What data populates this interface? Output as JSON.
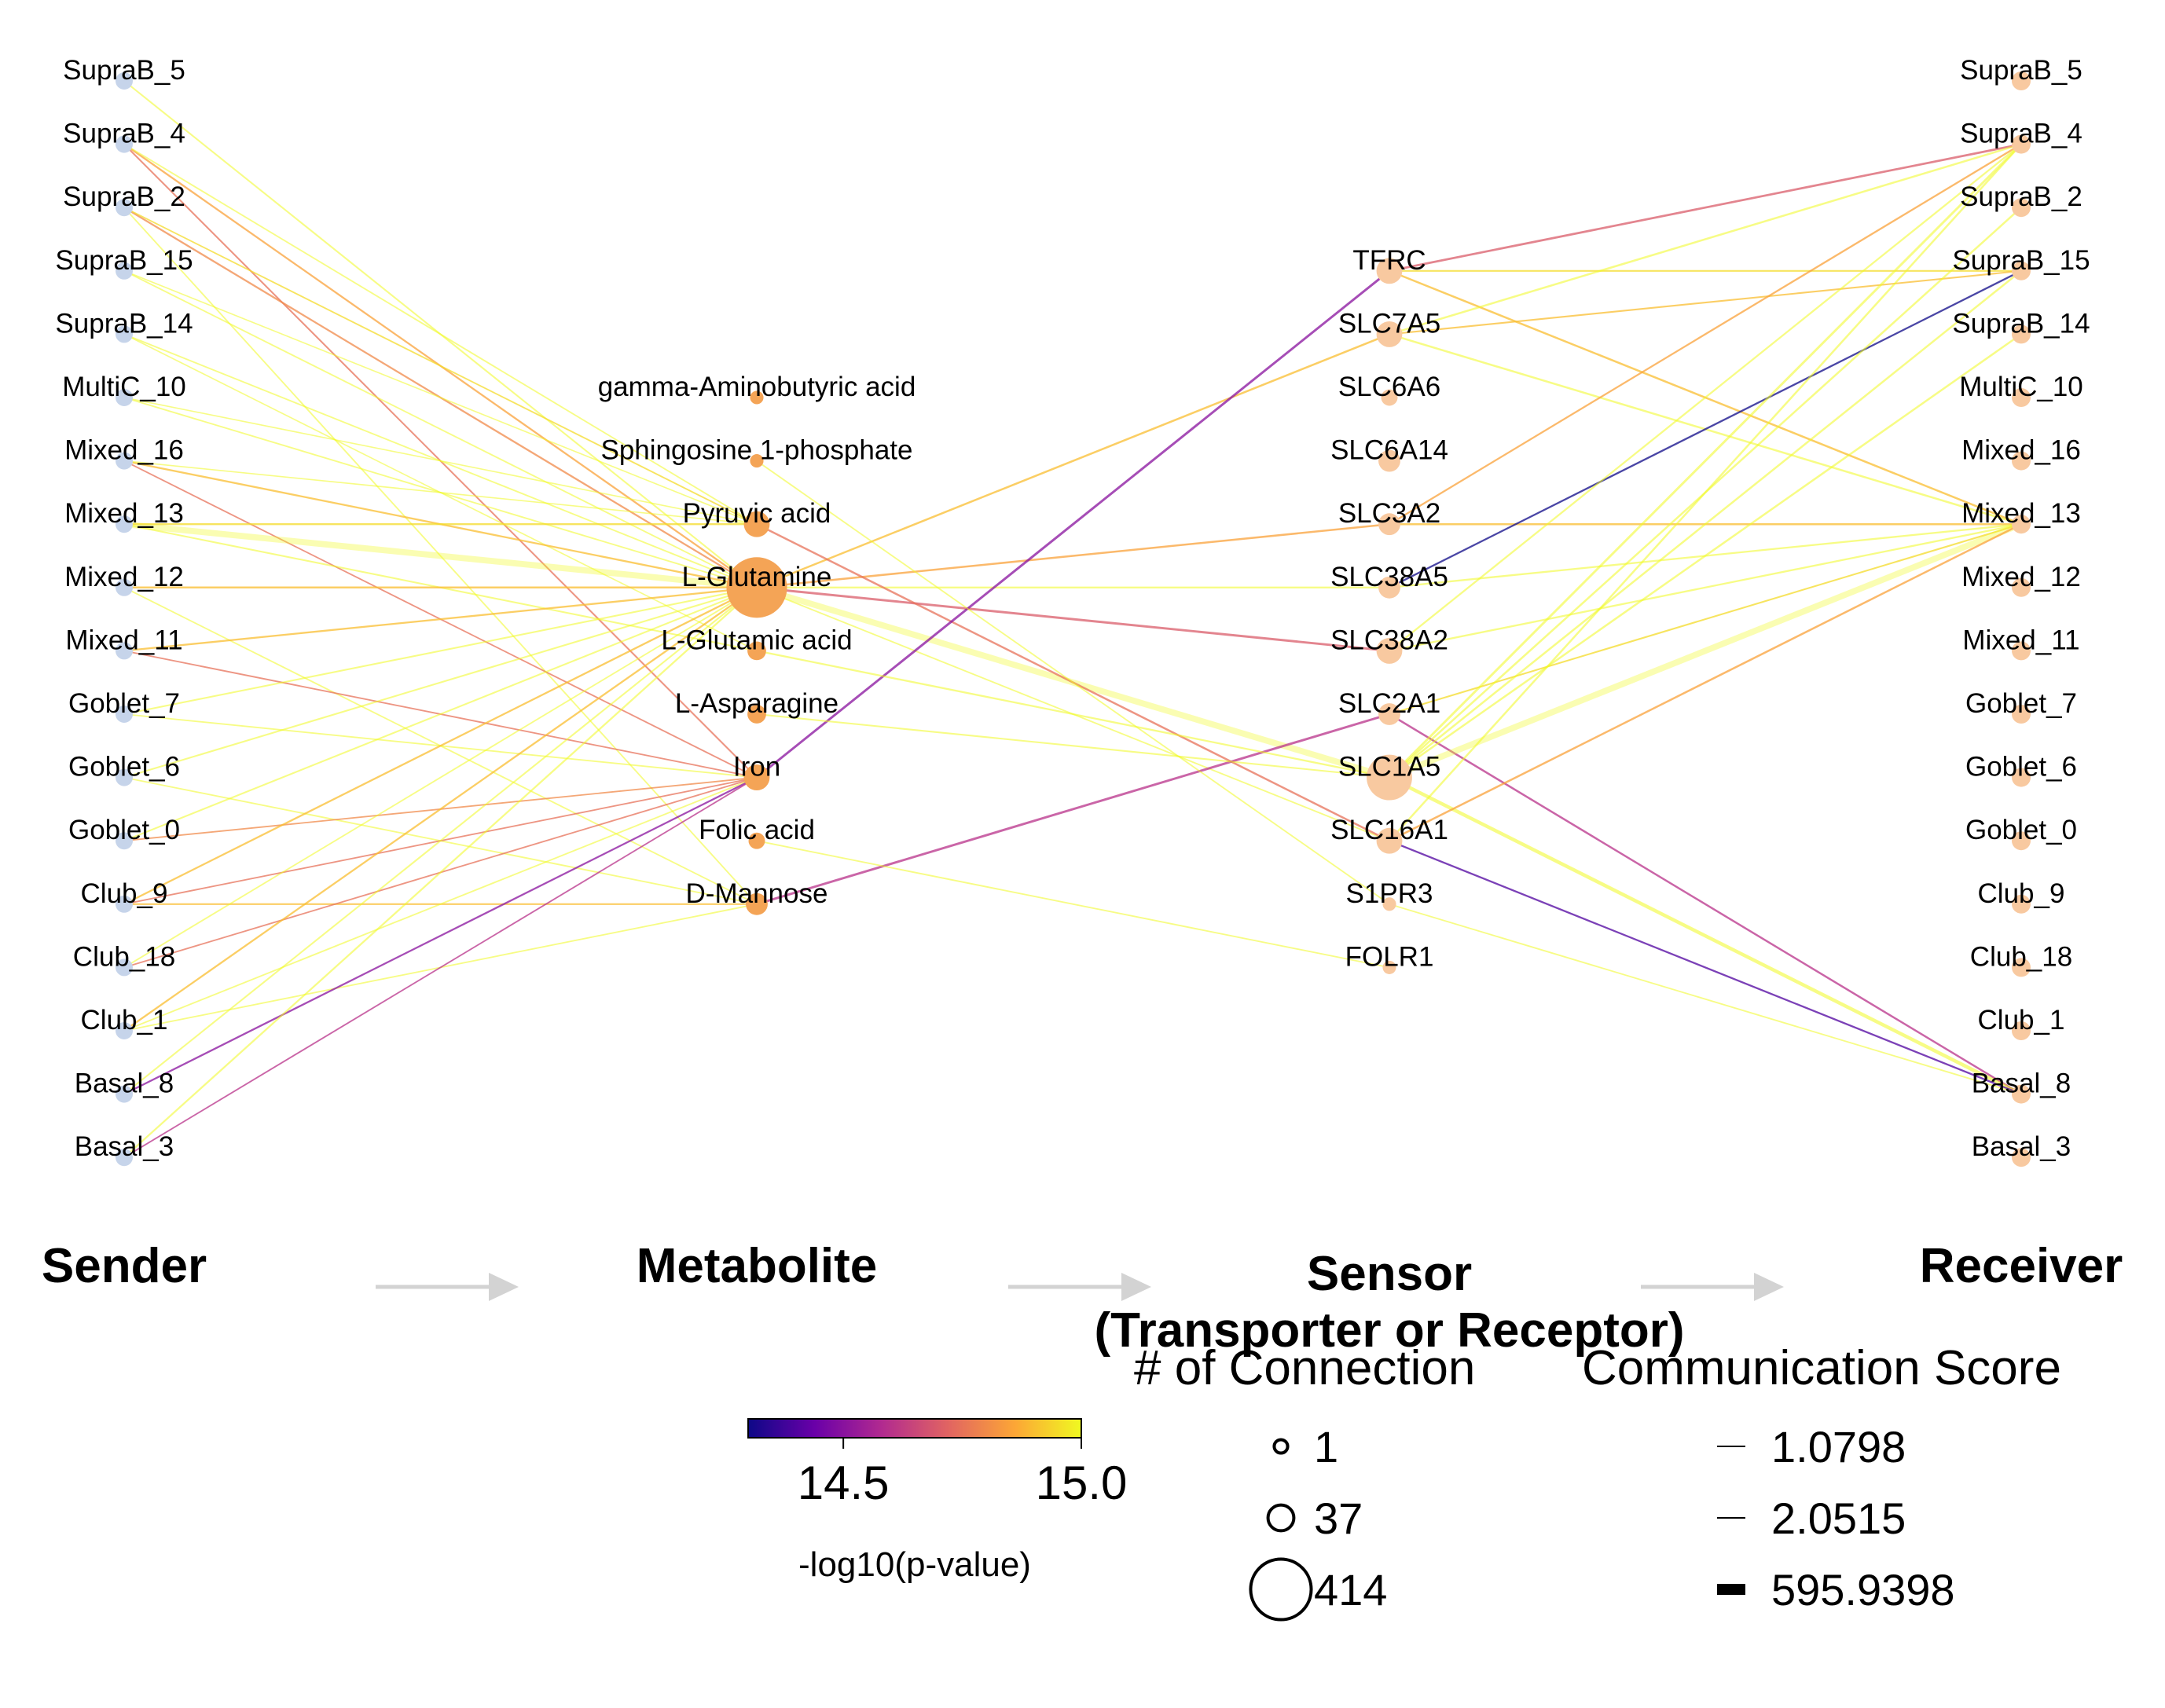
{
  "senders": [
    "SupraB_5",
    "SupraB_4",
    "SupraB_2",
    "SupraB_15",
    "SupraB_14",
    "MultiC_10",
    "Mixed_16",
    "Mixed_13",
    "Mixed_12",
    "Mixed_11",
    "Goblet_7",
    "Goblet_6",
    "Goblet_0",
    "Club_9",
    "Club_18",
    "Club_1",
    "Basal_8",
    "Basal_3"
  ],
  "metabolites": [
    {
      "name": "gamma-Aminobutyric acid",
      "connections": 1
    },
    {
      "name": "Sphingosine 1-phosphate",
      "connections": 1
    },
    {
      "name": "Pyruvic acid",
      "connections": 37
    },
    {
      "name": "L-Glutamine",
      "connections": 414
    },
    {
      "name": "L-Glutamic acid",
      "connections": 10
    },
    {
      "name": "L-Asparagine",
      "connections": 10
    },
    {
      "name": "Iron",
      "connections": 37
    },
    {
      "name": "Folic acid",
      "connections": 5
    },
    {
      "name": "D-Mannose",
      "connections": 20
    }
  ],
  "sensors": [
    {
      "name": "TFRC",
      "connections": 37
    },
    {
      "name": "SLC7A5",
      "connections": 37
    },
    {
      "name": "SLC6A6",
      "connections": 5
    },
    {
      "name": "SLC6A14",
      "connections": 20
    },
    {
      "name": "SLC3A2",
      "connections": 20
    },
    {
      "name": "SLC38A5",
      "connections": 20
    },
    {
      "name": "SLC38A2",
      "connections": 37
    },
    {
      "name": "SLC2A1",
      "connections": 20
    },
    {
      "name": "SLC1A5",
      "connections": 200
    },
    {
      "name": "SLC16A1",
      "connections": 37
    },
    {
      "name": "S1PR3",
      "connections": 1
    },
    {
      "name": "FOLR1",
      "connections": 1
    }
  ],
  "receivers": [
    "SupraB_5",
    "SupraB_4",
    "SupraB_2",
    "SupraB_15",
    "SupraB_14",
    "MultiC_10",
    "Mixed_16",
    "Mixed_13",
    "Mixed_12",
    "Mixed_11",
    "Goblet_7",
    "Goblet_6",
    "Goblet_0",
    "Club_9",
    "Club_18",
    "Club_1",
    "Basal_8",
    "Basal_3"
  ],
  "stage_labels": [
    "Sender",
    "Metabolite",
    "Sensor\n(Transporter or Receptor)",
    "Receiver"
  ],
  "colorbar": {
    "title": "-log10(p-value)",
    "min": 14.3,
    "max": 15.0,
    "ticks": [
      "14.5",
      "15.0"
    ],
    "tick_values": [
      14.5,
      15.0
    ],
    "colors": [
      "#0d0887",
      "#6a00a8",
      "#b12a90",
      "#e16462",
      "#fca636",
      "#f0f921"
    ]
  },
  "connection_legend": {
    "title": "# of Connection",
    "items": [
      {
        "label": "1",
        "value": 1
      },
      {
        "label": "37",
        "value": 37
      },
      {
        "label": "414",
        "value": 414
      }
    ]
  },
  "score_legend": {
    "title": "Communication Score",
    "items": [
      {
        "label": "1.0798",
        "value": 1.0798
      },
      {
        "label": "2.0515",
        "value": 2.0515
      },
      {
        "label": "595.9398",
        "value": 595.9398
      }
    ]
  },
  "colors": {
    "sender_node": "#c6d4ea",
    "metabolite_node": "#f4a456",
    "sensor_node": "#f8c9a0",
    "receiver_node": "#f8c9a0",
    "arrow": "#d3d3d3"
  },
  "edges": {
    "sender_metabolite": [
      [
        "SupraB_5",
        "L-Glutamine",
        15.0,
        0.4
      ],
      [
        "SupraB_4",
        "L-Glutamine",
        14.85,
        0.5
      ],
      [
        "SupraB_4",
        "Iron",
        14.75,
        0.4
      ],
      [
        "SupraB_4",
        "Pyruvic acid",
        15.0,
        0.3
      ],
      [
        "SupraB_2",
        "L-Glutamine",
        14.8,
        0.5
      ],
      [
        "SupraB_2",
        "Pyruvic acid",
        14.95,
        0.3
      ],
      [
        "SupraB_2",
        "D-Mannose",
        15.0,
        0.3
      ],
      [
        "SupraB_15",
        "L-Glutamine",
        15.0,
        0.3
      ],
      [
        "SupraB_15",
        "Pyruvic acid",
        15.0,
        0.2
      ],
      [
        "SupraB_14",
        "L-Glutamine",
        15.0,
        0.3
      ],
      [
        "SupraB_14",
        "L-Glutamic acid",
        15.0,
        0.2
      ],
      [
        "MultiC_10",
        "L-Glutamine",
        15.0,
        0.3
      ],
      [
        "MultiC_10",
        "Pyruvic acid",
        15.0,
        0.2
      ],
      [
        "Mixed_16",
        "L-Glutamine",
        14.9,
        0.5
      ],
      [
        "Mixed_16",
        "Iron",
        14.75,
        0.3
      ],
      [
        "Mixed_16",
        "Pyruvic acid",
        15.0,
        0.2
      ],
      [
        "Mixed_13",
        "L-Glutamine",
        15.0,
        3.0
      ],
      [
        "Mixed_13",
        "Pyruvic acid",
        14.95,
        0.5
      ],
      [
        "Mixed_13",
        "L-Glutamic acid",
        15.0,
        0.4
      ],
      [
        "Mixed_12",
        "L-Glutamine",
        14.9,
        0.6
      ],
      [
        "Mixed_12",
        "D-Mannose",
        15.0,
        0.3
      ],
      [
        "Mixed_11",
        "L-Glutamine",
        14.9,
        0.5
      ],
      [
        "Mixed_11",
        "Iron",
        14.75,
        0.3
      ],
      [
        "Goblet_7",
        "L-Glutamine",
        15.0,
        0.4
      ],
      [
        "Goblet_7",
        "Iron",
        15.0,
        0.3
      ],
      [
        "Goblet_6",
        "L-Glutamine",
        15.0,
        0.4
      ],
      [
        "Goblet_6",
        "D-Mannose",
        15.0,
        0.3
      ],
      [
        "Goblet_0",
        "L-Glutamine",
        15.0,
        0.4
      ],
      [
        "Goblet_0",
        "Iron",
        14.8,
        0.3
      ],
      [
        "Club_9",
        "L-Glutamine",
        14.9,
        0.5
      ],
      [
        "Club_9",
        "D-Mannose",
        14.9,
        0.4
      ],
      [
        "Club_9",
        "Iron",
        14.75,
        0.3
      ],
      [
        "Club_18",
        "Iron",
        14.75,
        0.3
      ],
      [
        "Club_18",
        "L-Glutamine",
        15.0,
        0.3
      ],
      [
        "Club_1",
        "L-Glutamine",
        14.9,
        0.5
      ],
      [
        "Club_1",
        "Iron",
        15.0,
        0.3
      ],
      [
        "Club_1",
        "D-Mannose",
        15.0,
        0.3
      ],
      [
        "Basal_8",
        "L-Glutamine",
        15.0,
        0.4
      ],
      [
        "Basal_8",
        "Iron",
        14.5,
        0.5
      ],
      [
        "Basal_3",
        "L-Glutamine",
        15.0,
        0.5
      ],
      [
        "Basal_3",
        "Iron",
        14.6,
        0.3
      ]
    ],
    "metabolite_sensor": [
      [
        "L-Glutamine",
        "SLC7A5",
        14.9,
        0.6
      ],
      [
        "L-Glutamine",
        "SLC3A2",
        14.85,
        0.6
      ],
      [
        "L-Glutamine",
        "SLC38A5",
        15.0,
        0.5
      ],
      [
        "L-Glutamine",
        "SLC38A2",
        14.7,
        0.8
      ],
      [
        "L-Glutamine",
        "SLC1A5",
        15.0,
        3.0
      ],
      [
        "L-Glutamine",
        "SLC16A1",
        15.0,
        0.3
      ],
      [
        "Pyruvic acid",
        "SLC16A1",
        14.75,
        0.6
      ],
      [
        "Iron",
        "TFRC",
        14.5,
        0.8
      ],
      [
        "D-Mannose",
        "SLC2A1",
        14.6,
        0.8
      ],
      [
        "L-Glutamic acid",
        "SLC1A5",
        15.0,
        0.5
      ],
      [
        "L-Asparagine",
        "SLC1A5",
        15.0,
        0.4
      ],
      [
        "Sphingosine 1-phosphate",
        "S1PR3",
        15.0,
        0.3
      ],
      [
        "Folic acid",
        "FOLR1",
        15.0,
        0.3
      ]
    ],
    "sensor_receiver": [
      [
        "TFRC",
        "SupraB_4",
        14.7,
        0.7
      ],
      [
        "TFRC",
        "SupraB_15",
        14.95,
        0.4
      ],
      [
        "TFRC",
        "Mixed_13",
        14.9,
        0.6
      ],
      [
        "SLC7A5",
        "SupraB_4",
        15.0,
        0.6
      ],
      [
        "SLC7A5",
        "SupraB_15",
        14.9,
        0.4
      ],
      [
        "SLC7A5",
        "Mixed_13",
        15.0,
        0.6
      ],
      [
        "SLC3A2",
        "SupraB_4",
        14.85,
        0.5
      ],
      [
        "SLC3A2",
        "Mixed_13",
        14.9,
        0.6
      ],
      [
        "SLC38A5",
        "Mixed_13",
        15.0,
        0.5
      ],
      [
        "SLC38A5",
        "SupraB_15",
        14.3,
        0.5
      ],
      [
        "SLC38A2",
        "SupraB_4",
        15.0,
        0.5
      ],
      [
        "SLC38A2",
        "Mixed_13",
        15.0,
        0.5
      ],
      [
        "SLC2A1",
        "Mixed_13",
        14.95,
        0.4
      ],
      [
        "SLC2A1",
        "Basal_8",
        14.6,
        0.6
      ],
      [
        "SLC1A5",
        "SupraB_4",
        15.0,
        0.8
      ],
      [
        "SLC1A5",
        "SupraB_2",
        15.0,
        0.6
      ],
      [
        "SLC1A5",
        "SupraB_15",
        15.0,
        0.6
      ],
      [
        "SLC1A5",
        "SupraB_14",
        15.0,
        0.6
      ],
      [
        "SLC1A5",
        "Mixed_13",
        15.0,
        3.0
      ],
      [
        "SLC1A5",
        "Basal_8",
        15.0,
        1.5
      ],
      [
        "SLC16A1",
        "SupraB_4",
        15.0,
        0.6
      ],
      [
        "SLC16A1",
        "Mixed_13",
        14.85,
        0.6
      ],
      [
        "SLC16A1",
        "Basal_8",
        14.4,
        0.5
      ],
      [
        "S1PR3",
        "Basal_8",
        15.0,
        0.3
      ]
    ]
  }
}
